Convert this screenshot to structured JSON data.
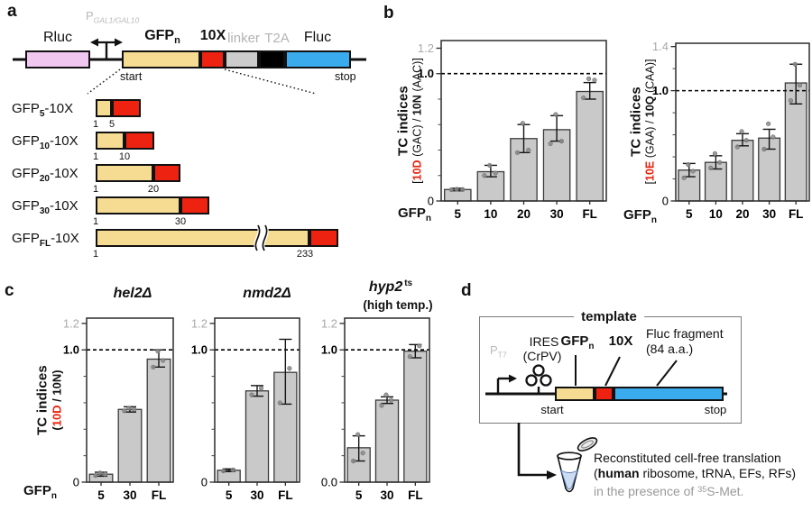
{
  "panels": {
    "a": "a",
    "b": "b",
    "c": "c",
    "d": "d"
  },
  "colors": {
    "bar_fill": "#c9c9c9",
    "bar_stroke": "#3b3b3b",
    "accent_red": "#e8220d",
    "tick_gray": "#a9a9a9",
    "point_gray": "#8b8b8b",
    "gene_yellow": "#f6dc92",
    "gene_red": "#ee2211",
    "gene_blue": "#3aabec",
    "gene_pink": "#efc7ef",
    "gene_gray": "#cccccc",
    "gene_black": "#000000",
    "liquid_blue": "#ccdcf2"
  },
  "panel_a": {
    "promoter_label": {
      "p": "P",
      "sub": "GAL1/GAL10"
    },
    "track_labels": {
      "rluc": "Rluc",
      "gfp": "GFP",
      "gfp_sub": "n",
      "tenx": "10X",
      "linker": "linker",
      "t2a": "T2A",
      "fluc": "Fluc"
    },
    "start": "start",
    "stop": "stop",
    "variants": [
      {
        "prefix": "GFP",
        "sub": "5",
        "suffix": "-10X",
        "num_start": "1",
        "num_end": "5"
      },
      {
        "prefix": "GFP",
        "sub": "10",
        "suffix": "-10X",
        "num_start": "1",
        "num_end": "10"
      },
      {
        "prefix": "GFP",
        "sub": "20",
        "suffix": "-10X",
        "num_start": "1",
        "num_end": "20"
      },
      {
        "prefix": "GFP",
        "sub": "30",
        "suffix": "-10X",
        "num_start": "1",
        "num_end": "30"
      },
      {
        "prefix": "GFP",
        "sub": "FL",
        "suffix": "-10X",
        "num_start": "1",
        "num_end": "233"
      }
    ]
  },
  "panel_d": {
    "box_title": "template",
    "pt7": {
      "p": "P",
      "sub": "T7"
    },
    "ires_line1": "IRES",
    "ires_line2": "(CrPV)",
    "gfp": "GFP",
    "gfp_sub": "n",
    "tenx": "10X",
    "fluc_line1": "Fluc fragment",
    "fluc_line2": "(84 a.a.)",
    "start": "start",
    "stop": "stop",
    "caption": {
      "line1": "Reconstituted cell-free translation",
      "line2_pre": "(",
      "line2_bold": "human",
      "line2_post": " ribosome, tRNA, EFs, RFs)",
      "line3_pre": "in the presence of ",
      "line3_sup": "35",
      "line3_post": "S-Met."
    }
  },
  "chart_data": [
    {
      "id": "b1",
      "panel": "b",
      "type": "bar",
      "categories": [
        "5",
        "10",
        "20",
        "30",
        "FL"
      ],
      "values": [
        0.09,
        0.23,
        0.49,
        0.56,
        0.86
      ],
      "err_low": [
        0.01,
        0.04,
        0.11,
        0.09,
        0.06
      ],
      "err_high": [
        0.01,
        0.05,
        0.11,
        0.11,
        0.07
      ],
      "points": [
        [
          0.088,
          0.09,
          0.092
        ],
        [
          0.2,
          0.22,
          0.28
        ],
        [
          0.38,
          0.4,
          0.61
        ],
        [
          0.45,
          0.47,
          0.68
        ],
        [
          0.81,
          0.95,
          0.96
        ]
      ],
      "ylim": [
        0,
        1.26
      ],
      "dashed_y": 1.0,
      "yticks": [
        {
          "v": 0,
          "label": "0",
          "style": "normal"
        },
        {
          "v": 1.0,
          "label": "1.0",
          "style": "bold"
        },
        {
          "v": 1.2,
          "label": "1.2",
          "style": "gray"
        }
      ],
      "minor_yticks": [
        0.2,
        0.4,
        0.6,
        0.8
      ],
      "ylabel_main": "TC indices",
      "ylabel_sub": [
        {
          "t": "[",
          "s": "n"
        },
        {
          "t": "10D",
          "s": "red"
        },
        {
          "t": " (GAC) / ",
          "s": "n"
        },
        {
          "t": "10N",
          "s": "b"
        },
        {
          "t": " (AAC)]",
          "s": "n"
        }
      ],
      "xlabel": {
        "t": "GFP",
        "sub": "n"
      }
    },
    {
      "id": "b2",
      "panel": "b",
      "type": "bar",
      "categories": [
        "5",
        "10",
        "20",
        "30",
        "FL"
      ],
      "values": [
        0.28,
        0.35,
        0.55,
        0.57,
        1.07
      ],
      "err_low": [
        0.06,
        0.06,
        0.05,
        0.1,
        0.19
      ],
      "err_high": [
        0.06,
        0.06,
        0.06,
        0.08,
        0.17
      ],
      "points": [
        [
          0.21,
          0.27,
          0.33
        ],
        [
          0.3,
          0.35,
          0.43
        ],
        [
          0.49,
          0.55,
          0.63
        ],
        [
          0.47,
          0.58,
          0.7
        ],
        [
          0.91,
          1.05,
          1.24
        ]
      ],
      "ylim": [
        0,
        1.43
      ],
      "dashed_y": 1.0,
      "yticks": [
        {
          "v": 0,
          "label": "0",
          "style": "normal"
        },
        {
          "v": 1.0,
          "label": "1.0",
          "style": "bold"
        },
        {
          "v": 1.4,
          "label": "1.4",
          "style": "gray"
        }
      ],
      "minor_yticks": [
        0.2,
        0.4,
        0.6,
        0.8,
        1.2
      ],
      "ylabel_main": "TC indices",
      "ylabel_sub": [
        {
          "t": "[",
          "s": "n"
        },
        {
          "t": "10E",
          "s": "red"
        },
        {
          "t": " (GAA) / ",
          "s": "n"
        },
        {
          "t": "10Q",
          "s": "b"
        },
        {
          "t": " (CAA)]",
          "s": "n"
        }
      ],
      "xlabel": {
        "t": "GFP",
        "sub": "n"
      }
    },
    {
      "id": "c1",
      "panel": "c",
      "type": "bar",
      "title": "hel2Δ",
      "categories": [
        "5",
        "30",
        "FL"
      ],
      "values": [
        0.06,
        0.55,
        0.93
      ],
      "err_low": [
        0.015,
        0.02,
        0.06
      ],
      "err_high": [
        0.015,
        0.02,
        0.07
      ],
      "points": [
        [
          0.05,
          0.06,
          0.07
        ],
        [
          0.54,
          0.55,
          0.56
        ],
        [
          0.87,
          0.92,
          0.99
        ]
      ],
      "ylim": [
        0,
        1.24
      ],
      "dashed_y": 1.0,
      "yticks": [
        {
          "v": 0,
          "label": "0",
          "style": "normal"
        },
        {
          "v": 1.0,
          "label": "1.0",
          "style": "bold"
        },
        {
          "v": 1.2,
          "label": "1.2",
          "style": "gray"
        }
      ],
      "minor_yticks": [
        0.2,
        0.4,
        0.6,
        0.8
      ],
      "ylabel_main": "TC indices",
      "ylabel_sub": [
        {
          "t": "(",
          "s": "b"
        },
        {
          "t": "10D",
          "s": "red"
        },
        {
          "t": " / ",
          "s": "b"
        },
        {
          "t": "10N",
          "s": "b"
        },
        {
          "t": ")",
          "s": "b"
        }
      ],
      "xlabel": {
        "t": "GFP",
        "sub": "n"
      }
    },
    {
      "id": "c2",
      "panel": "c",
      "type": "bar",
      "title": "nmd2Δ",
      "categories": [
        "5",
        "30",
        "FL"
      ],
      "values": [
        0.09,
        0.69,
        0.83
      ],
      "err_low": [
        0.01,
        0.04,
        0.24
      ],
      "err_high": [
        0.01,
        0.04,
        0.25
      ],
      "points": [
        [
          0.085,
          0.092
        ],
        [
          0.66,
          0.71
        ],
        [
          0.6,
          0.86
        ]
      ],
      "ylim": [
        0,
        1.24
      ],
      "dashed_y": 1.0,
      "yticks": [
        {
          "v": 0,
          "label": "0",
          "style": "normal"
        },
        {
          "v": 1.0,
          "label": "1.0",
          "style": "bold"
        },
        {
          "v": 1.2,
          "label": "1.2",
          "style": "gray"
        }
      ],
      "minor_yticks": [
        0.2,
        0.4,
        0.6,
        0.8
      ]
    },
    {
      "id": "c3",
      "panel": "c",
      "type": "bar",
      "title": "hyp2",
      "title_sup": "ts",
      "title_line2": "(high temp.)",
      "categories": [
        "5",
        "30",
        "FL"
      ],
      "values": [
        0.26,
        0.62,
        0.99
      ],
      "err_low": [
        0.1,
        0.025,
        0.05
      ],
      "err_high": [
        0.09,
        0.025,
        0.05
      ],
      "points": [
        [
          0.16,
          0.22,
          0.36
        ],
        [
          0.58,
          0.62,
          0.66
        ],
        [
          0.95,
          1.03
        ]
      ],
      "ylim": [
        0,
        1.24
      ],
      "dashed_y": 1.0,
      "yticks": [
        {
          "v": 0,
          "label": "0.0",
          "style": "normal"
        },
        {
          "v": 1.0,
          "label": "1.0",
          "style": "bold"
        },
        {
          "v": 1.2,
          "label": "1.2",
          "style": "gray"
        }
      ],
      "minor_yticks": [
        0.2,
        0.4,
        0.6,
        0.8
      ]
    }
  ]
}
